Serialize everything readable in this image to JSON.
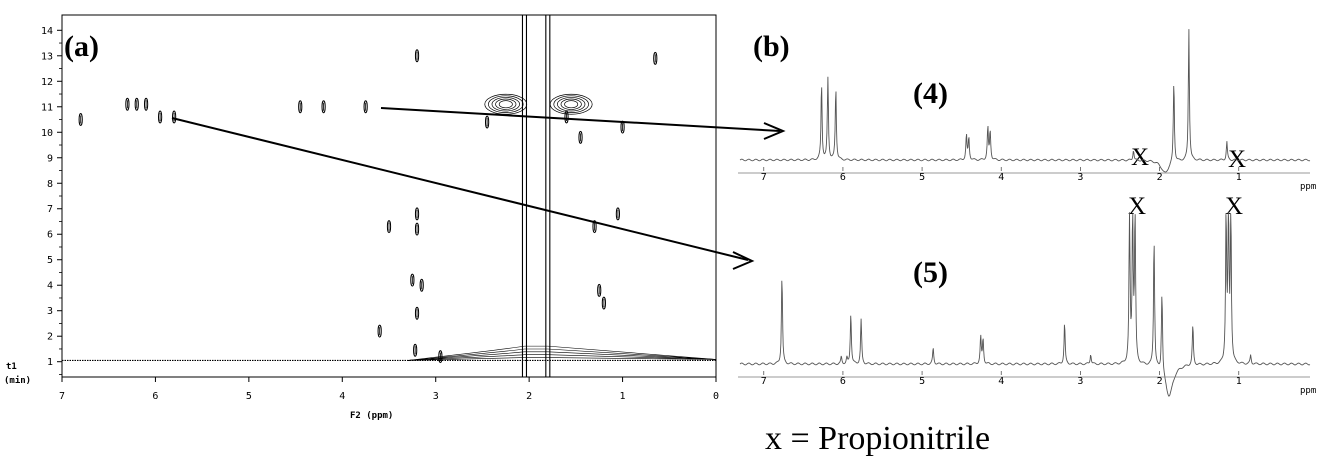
{
  "panel_a": {
    "label": "(a)",
    "x_label": "F2 (ppm)",
    "y_label_line1": "t1",
    "y_label_line2": "(min)",
    "x_ticks": [
      "7",
      "6",
      "5",
      "4",
      "3",
      "2",
      "1",
      "0"
    ],
    "y_ticks": [
      "1",
      "2",
      "3",
      "4",
      "5",
      "6",
      "7",
      "8",
      "9",
      "10",
      "11",
      "12",
      "13",
      "14"
    ]
  },
  "panel_b": {
    "label": "(b)",
    "ppm_unit": "ppm",
    "x_ticks": [
      "7",
      "6",
      "5",
      "4",
      "3",
      "2",
      "1"
    ],
    "spectrum_4": {
      "label": "(4)",
      "markers": [
        "X",
        "X"
      ]
    },
    "spectrum_5": {
      "label": "(5)",
      "markers": [
        "X",
        "X"
      ]
    }
  },
  "legend": {
    "text": "x = Propionitrile"
  },
  "chart_data": [
    {
      "type": "heatmap",
      "title": "",
      "xlabel": "F2 (ppm)",
      "ylabel": "t1 (min)",
      "xlim": [
        7,
        0
      ],
      "ylim": [
        0.4,
        14.6
      ],
      "solvent_lines_ppm": [
        2.05,
        1.8
      ],
      "baseline_t1_min": 1.05,
      "spots": [
        {
          "x": 6.3,
          "t": 11.1
        },
        {
          "x": 6.2,
          "t": 11.1
        },
        {
          "x": 6.1,
          "t": 11.1
        },
        {
          "x": 4.45,
          "t": 11.0
        },
        {
          "x": 4.2,
          "t": 11.0
        },
        {
          "x": 3.75,
          "t": 11.0
        },
        {
          "x": 6.8,
          "t": 10.5
        },
        {
          "x": 5.95,
          "t": 10.6
        },
        {
          "x": 5.8,
          "t": 10.6
        },
        {
          "x": 3.2,
          "t": 13.0
        },
        {
          "x": 3.2,
          "t": 6.8
        },
        {
          "x": 3.2,
          "t": 6.2
        },
        {
          "x": 3.5,
          "t": 6.3
        },
        {
          "x": 3.25,
          "t": 4.2
        },
        {
          "x": 3.15,
          "t": 4.0
        },
        {
          "x": 3.2,
          "t": 2.9
        },
        {
          "x": 3.6,
          "t": 2.2
        },
        {
          "x": 1.3,
          "t": 6.3
        },
        {
          "x": 1.25,
          "t": 3.8
        },
        {
          "x": 1.2,
          "t": 3.3
        },
        {
          "x": 1.6,
          "t": 10.6
        },
        {
          "x": 1.45,
          "t": 9.8
        },
        {
          "x": 1.0,
          "t": 10.2
        },
        {
          "x": 2.45,
          "t": 10.4
        },
        {
          "x": 1.05,
          "t": 6.8
        },
        {
          "x": 0.65,
          "t": 12.9
        },
        {
          "x": 3.22,
          "t": 1.45
        },
        {
          "x": 2.95,
          "t": 1.2
        }
      ],
      "blobs": [
        {
          "x": 2.25,
          "t": 11.1
        },
        {
          "x": 1.55,
          "t": 11.1
        }
      ]
    },
    {
      "type": "line",
      "name": "(4)",
      "xlabel": "ppm",
      "xlim": [
        7.3,
        0.1
      ],
      "peaks": [
        {
          "ppm": 6.27,
          "h": 0.58
        },
        {
          "ppm": 6.19,
          "h": 0.62
        },
        {
          "ppm": 6.09,
          "h": 0.55
        },
        {
          "ppm": 4.44,
          "h": 0.19
        },
        {
          "ppm": 4.41,
          "h": 0.17
        },
        {
          "ppm": 4.17,
          "h": 0.25
        },
        {
          "ppm": 4.14,
          "h": 0.22
        },
        {
          "ppm": 2.33,
          "h": 0.08
        },
        {
          "ppm": 1.82,
          "h": 0.62
        },
        {
          "ppm": 1.63,
          "h": 1.0
        },
        {
          "ppm": 1.15,
          "h": 0.14
        }
      ],
      "dips": [
        {
          "ppm": 1.93,
          "depth": 0.1
        }
      ]
    },
    {
      "type": "line",
      "name": "(5)",
      "xlabel": "ppm",
      "xlim": [
        7.3,
        0.1
      ],
      "peaks": [
        {
          "ppm": 6.77,
          "h": 0.6
        },
        {
          "ppm": 6.02,
          "h": 0.05
        },
        {
          "ppm": 5.95,
          "h": 0.04
        },
        {
          "ppm": 5.9,
          "h": 0.35
        },
        {
          "ppm": 5.77,
          "h": 0.3
        },
        {
          "ppm": 4.86,
          "h": 0.11
        },
        {
          "ppm": 4.26,
          "h": 0.19
        },
        {
          "ppm": 4.23,
          "h": 0.17
        },
        {
          "ppm": 3.2,
          "h": 0.28
        },
        {
          "ppm": 2.87,
          "h": 0.07
        },
        {
          "ppm": 2.38,
          "h": 1.0
        },
        {
          "ppm": 2.34,
          "h": 1.0
        },
        {
          "ppm": 2.31,
          "h": 1.0
        },
        {
          "ppm": 2.07,
          "h": 0.87
        },
        {
          "ppm": 1.97,
          "h": 0.55
        },
        {
          "ppm": 1.58,
          "h": 0.27
        },
        {
          "ppm": 1.16,
          "h": 1.0
        },
        {
          "ppm": 1.13,
          "h": 1.0
        },
        {
          "ppm": 1.1,
          "h": 1.0
        },
        {
          "ppm": 0.85,
          "h": 0.06
        }
      ],
      "dips": [
        {
          "ppm": 1.88,
          "depth": 0.22
        }
      ]
    }
  ]
}
